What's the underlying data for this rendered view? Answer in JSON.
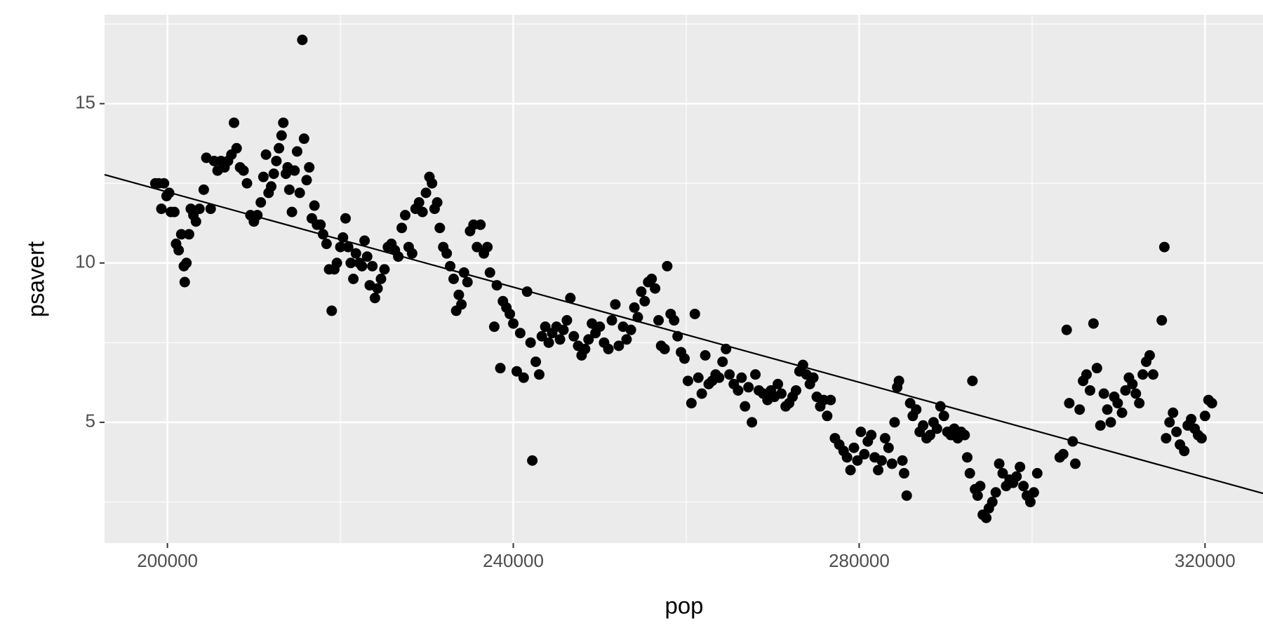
{
  "chart_data": {
    "type": "scatter",
    "x_label": "pop",
    "y_label": "psavert",
    "xlim": [
      192727,
      326706
    ],
    "ylim": [
      1.21,
      17.79
    ],
    "xticks": [
      200000,
      240000,
      280000,
      320000
    ],
    "yticks": [
      5,
      10,
      15
    ],
    "xminor": [
      220000,
      260000,
      300000
    ],
    "yminor": [
      2.5,
      7.5,
      12.5,
      17.5
    ],
    "grid": true,
    "color": "#000000",
    "panel_color": "#ebebeb",
    "x": [
      198600,
      199000,
      199300,
      199600,
      199900,
      200200,
      200400,
      200800,
      201000,
      201300,
      201600,
      201900,
      202000,
      202200,
      202500,
      202700,
      203000,
      203300,
      203700,
      204200,
      204500,
      205000,
      205400,
      205800,
      206200,
      206600,
      207000,
      207400,
      207700,
      208000,
      208400,
      208800,
      209200,
      209600,
      210000,
      210400,
      210800,
      211100,
      211400,
      211700,
      212000,
      212300,
      212600,
      212900,
      213200,
      213400,
      213700,
      213900,
      214100,
      214400,
      214700,
      215000,
      215300,
      215600,
      215800,
      216100,
      216400,
      216700,
      217000,
      217300,
      217700,
      218000,
      218400,
      218700,
      219000,
      219300,
      219600,
      220000,
      220300,
      220600,
      220900,
      221200,
      221500,
      221800,
      222200,
      222500,
      222800,
      223100,
      223400,
      223700,
      224000,
      224300,
      224700,
      225100,
      225500,
      225900,
      226300,
      226700,
      227100,
      227500,
      227900,
      228300,
      228700,
      229100,
      229500,
      229900,
      230300,
      230600,
      230900,
      231200,
      231500,
      231900,
      232300,
      232700,
      233100,
      233400,
      233700,
      234000,
      234300,
      234700,
      235000,
      235400,
      235800,
      236200,
      236600,
      237000,
      237300,
      237800,
      238100,
      238500,
      238800,
      239200,
      239600,
      240000,
      240400,
      240800,
      241200,
      241600,
      242000,
      242200,
      242600,
      243000,
      243300,
      243700,
      244100,
      244500,
      245000,
      245400,
      245800,
      246200,
      246600,
      247000,
      247500,
      247900,
      248300,
      248700,
      249100,
      249500,
      250000,
      250500,
      251000,
      251400,
      251800,
      252200,
      252700,
      253100,
      253600,
      254000,
      254400,
      254800,
      255200,
      255600,
      256000,
      256400,
      256800,
      257100,
      257500,
      257800,
      258200,
      258600,
      259000,
      259400,
      259800,
      260200,
      260600,
      261000,
      261400,
      261800,
      262200,
      262600,
      263000,
      263400,
      263800,
      264200,
      264600,
      265000,
      265500,
      266000,
      266400,
      266800,
      267200,
      267600,
      268000,
      268400,
      268900,
      269400,
      269800,
      270200,
      270600,
      271000,
      271500,
      271900,
      272300,
      272700,
      273100,
      273500,
      273900,
      274300,
      274700,
      275100,
      275500,
      275900,
      276300,
      276700,
      277200,
      277700,
      278200,
      278600,
      279000,
      279400,
      279800,
      280200,
      280600,
      281000,
      281400,
      281800,
      282200,
      282600,
      283000,
      283400,
      283800,
      284100,
      284400,
      284600,
      285000,
      285200,
      285500,
      285900,
      286200,
      286600,
      287000,
      287400,
      287800,
      288200,
      288600,
      289000,
      289400,
      289800,
      290200,
      290600,
      291000,
      291400,
      291800,
      292200,
      292500,
      292800,
      293100,
      293400,
      293700,
      294000,
      294300,
      294700,
      295000,
      295400,
      295800,
      296200,
      296600,
      297000,
      297400,
      297800,
      298200,
      298600,
      299000,
      299400,
      299800,
      300200,
      300600,
      303200,
      303600,
      304000,
      304300,
      304700,
      305000,
      305500,
      305900,
      306300,
      306700,
      307100,
      307500,
      307900,
      308300,
      308700,
      309100,
      309500,
      309900,
      310400,
      310800,
      311200,
      311600,
      312000,
      312400,
      312800,
      313200,
      313600,
      314000,
      315000,
      315300,
      315500,
      315900,
      316300,
      316700,
      317100,
      317600,
      318000,
      318400,
      318800,
      319200,
      319600,
      320000,
      320400,
      320800
    ],
    "values": [
      12.5,
      12.5,
      11.7,
      12.5,
      12.1,
      12.2,
      11.6,
      11.6,
      10.6,
      10.4,
      10.9,
      9.9,
      9.4,
      10.0,
      10.9,
      11.7,
      11.5,
      11.3,
      11.7,
      12.3,
      13.3,
      11.7,
      13.2,
      12.9,
      13.2,
      13.0,
      13.2,
      13.4,
      14.4,
      13.6,
      13.0,
      12.9,
      12.5,
      11.5,
      11.3,
      11.5,
      11.9,
      12.7,
      13.4,
      12.2,
      12.4,
      12.8,
      13.2,
      13.6,
      14.0,
      14.4,
      12.8,
      13.0,
      12.3,
      11.6,
      12.9,
      13.5,
      12.2,
      17.0,
      13.9,
      12.6,
      13.0,
      11.4,
      11.8,
      11.2,
      11.2,
      10.9,
      10.6,
      9.8,
      8.5,
      9.8,
      10.0,
      10.5,
      10.8,
      11.4,
      10.5,
      10.0,
      9.5,
      10.3,
      10.0,
      9.9,
      10.7,
      10.2,
      9.3,
      9.9,
      8.9,
      9.2,
      9.5,
      9.8,
      10.5,
      10.6,
      10.4,
      10.2,
      11.1,
      11.5,
      10.5,
      10.3,
      11.7,
      11.9,
      11.6,
      12.2,
      12.7,
      12.5,
      11.7,
      11.9,
      11.1,
      10.5,
      10.3,
      9.9,
      9.5,
      8.5,
      9.0,
      8.7,
      9.7,
      9.4,
      11.0,
      11.2,
      10.5,
      11.2,
      10.3,
      10.5,
      9.7,
      8.0,
      9.3,
      6.7,
      8.8,
      8.6,
      8.4,
      8.1,
      6.6,
      7.8,
      6.4,
      9.1,
      7.5,
      3.8,
      6.9,
      6.5,
      7.7,
      8.0,
      7.5,
      7.8,
      8.0,
      7.6,
      7.9,
      8.2,
      8.9,
      7.7,
      7.4,
      7.1,
      7.3,
      7.6,
      8.1,
      7.8,
      8.0,
      7.5,
      7.3,
      8.2,
      8.7,
      7.4,
      8.0,
      7.6,
      7.9,
      8.6,
      8.3,
      9.1,
      8.8,
      9.4,
      9.5,
      9.2,
      8.2,
      7.4,
      7.3,
      9.9,
      8.4,
      8.2,
      7.7,
      7.2,
      7.0,
      6.3,
      5.6,
      8.4,
      6.4,
      5.9,
      7.1,
      6.2,
      6.3,
      6.5,
      6.4,
      6.9,
      7.3,
      6.5,
      6.2,
      6.0,
      6.4,
      5.5,
      6.1,
      5.0,
      6.5,
      6.0,
      5.9,
      5.7,
      6.0,
      5.8,
      6.2,
      5.9,
      5.5,
      5.6,
      5.8,
      6.0,
      6.6,
      6.8,
      6.5,
      6.2,
      6.4,
      5.8,
      5.5,
      5.7,
      5.2,
      5.7,
      4.5,
      4.3,
      4.1,
      3.9,
      3.5,
      4.2,
      3.8,
      4.7,
      4.0,
      4.4,
      4.6,
      3.9,
      3.5,
      3.8,
      4.5,
      4.2,
      3.7,
      5.0,
      6.1,
      6.3,
      3.8,
      3.4,
      2.7,
      5.6,
      5.2,
      5.4,
      4.7,
      4.9,
      4.5,
      4.6,
      5.0,
      4.8,
      5.5,
      5.2,
      4.7,
      4.6,
      4.8,
      4.5,
      4.7,
      4.6,
      3.9,
      3.4,
      6.3,
      2.9,
      2.7,
      3.0,
      2.1,
      2.0,
      2.3,
      2.5,
      2.8,
      3.7,
      3.4,
      3.0,
      3.2,
      3.1,
      3.3,
      3.6,
      3.0,
      2.7,
      2.5,
      2.8,
      3.4,
      3.9,
      4.0,
      7.9,
      5.6,
      4.4,
      3.7,
      5.4,
      6.3,
      6.5,
      6.0,
      8.1,
      6.7,
      4.9,
      5.9,
      5.4,
      5.0,
      5.8,
      5.6,
      5.3,
      6.0,
      6.4,
      6.2,
      5.9,
      5.6,
      6.5,
      6.9,
      7.1,
      6.5,
      8.2,
      10.5,
      4.5,
      5.0,
      5.3,
      4.7,
      4.3,
      4.1,
      4.9,
      5.1,
      4.8,
      4.6,
      4.5,
      5.2,
      5.7,
      5.6
    ],
    "fit": {
      "x": [
        192727,
        326706
      ],
      "values": [
        12.77,
        2.77
      ],
      "color": "#000000"
    }
  }
}
